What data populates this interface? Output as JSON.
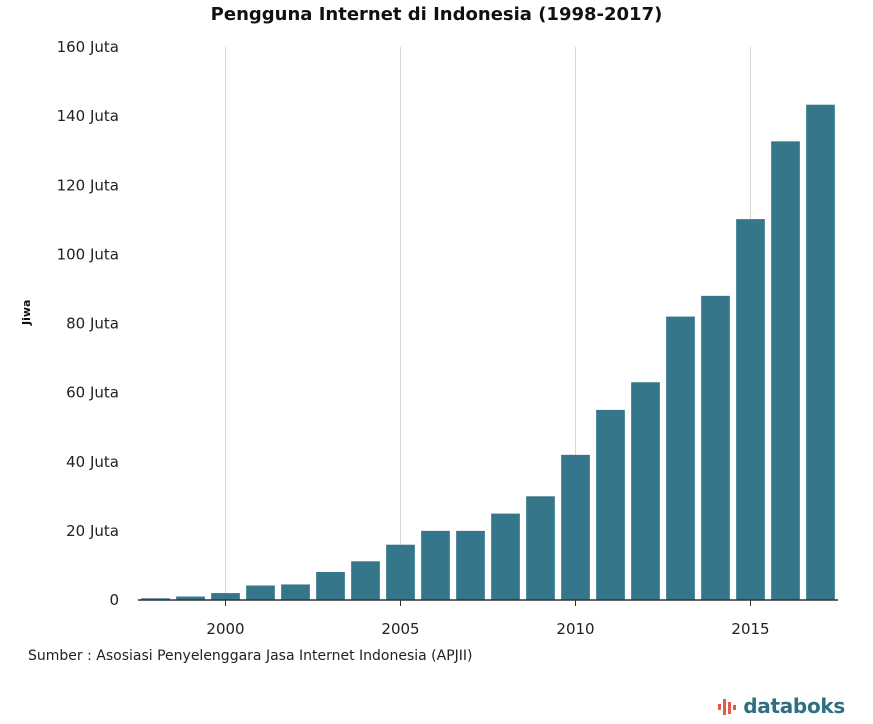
{
  "chart_data": {
    "type": "bar",
    "title": "Pengguna Internet di Indonesia (1998-2017)",
    "ylabel": "Jiwa",
    "xlabel": "",
    "x": [
      1998,
      1999,
      2000,
      2001,
      2002,
      2003,
      2004,
      2005,
      2006,
      2007,
      2008,
      2009,
      2010,
      2011,
      2012,
      2013,
      2014,
      2015,
      2016,
      2017
    ],
    "values": [
      0.5,
      1.0,
      2.0,
      4.2,
      4.5,
      8.1,
      11.2,
      16.0,
      20.0,
      20.0,
      25.0,
      30.0,
      42.0,
      55.0,
      63.0,
      82.0,
      88.0,
      110.2,
      132.7,
      143.3
    ],
    "unit": "Juta",
    "ylim": [
      0,
      160
    ],
    "yticks": [
      0,
      20,
      40,
      60,
      80,
      100,
      120,
      140,
      160
    ],
    "ytick_labels": [
      "0",
      "20 Juta",
      "40 Juta",
      "60 Juta",
      "80 Juta",
      "100 Juta",
      "120 Juta",
      "140 Juta",
      "160 Juta"
    ],
    "xticks": [
      2000,
      2005,
      2010,
      2015
    ],
    "xtick_labels": [
      "2000",
      "2005",
      "2010",
      "2015"
    ],
    "grid": "vertical",
    "bar_color": "#35768a"
  },
  "source": "Sumber : Asosiasi Penyelenggara Jasa Internet Indonesia (APJII)",
  "brand": {
    "name": "databoks",
    "icon": "databoks-logo-icon",
    "color": "#2e6f82",
    "accent": "#e05a47"
  }
}
